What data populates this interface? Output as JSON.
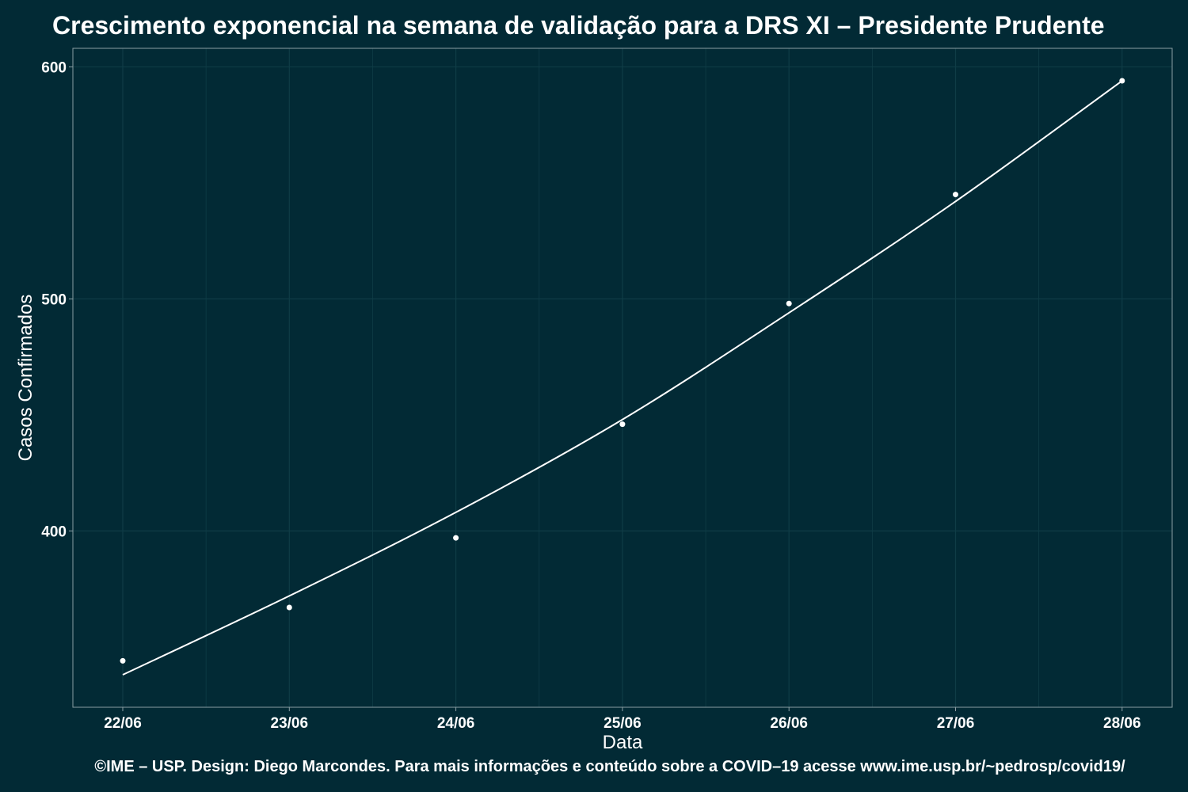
{
  "chart_data": {
    "type": "scatter",
    "title": "Crescimento exponencial na semana de validação para a DRS XI – Presidente Prudente",
    "xlabel": "Data",
    "ylabel": "Casos Confirmados",
    "caption": "©IME – USP. Design: Diego Marcondes. Para mais informações e conteúdo sobre a COVID–19 acesse www.ime.usp.br/~pedrosp/covid19/",
    "categories": [
      "22/06",
      "23/06",
      "24/06",
      "25/06",
      "26/06",
      "27/06",
      "28/06"
    ],
    "ylim": [
      324,
      608
    ],
    "y_ticks": [
      400,
      500,
      600
    ],
    "series": [
      {
        "values": [
          344,
          367,
          397,
          446,
          498,
          545,
          594
        ]
      }
    ],
    "fit_curve": [
      338,
      372,
      408,
      448,
      494,
      542,
      594
    ],
    "grid": true,
    "background": "#022a35",
    "grid_color": "#0f3c46",
    "axis_color": "#8a9ea4",
    "mark_color": "#ffffff"
  }
}
